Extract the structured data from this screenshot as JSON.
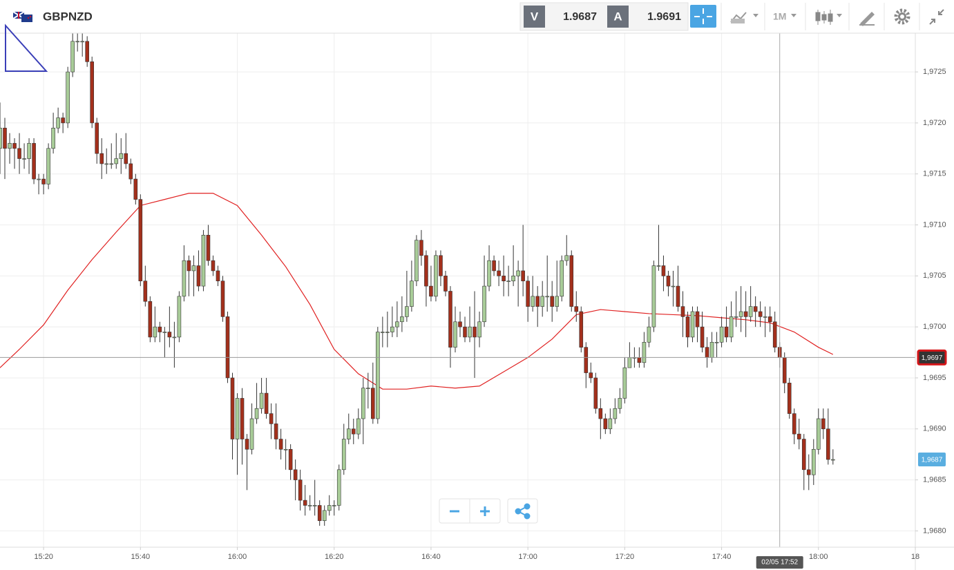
{
  "toolbar": {
    "symbol": "GBPNZD",
    "bid_label": "V",
    "bid": "1.9687",
    "ask_label": "A",
    "ask": "1.9691",
    "timeframe": "1M"
  },
  "chart_data": {
    "type": "candlestick",
    "x": [
      "15:11",
      "15:12",
      "15:13",
      "15:14",
      "15:15",
      "15:16",
      "15:17",
      "15:18",
      "15:19",
      "15:20",
      "15:21",
      "15:22",
      "15:23",
      "15:24",
      "15:25",
      "15:26",
      "15:27",
      "15:28",
      "15:29",
      "15:30",
      "15:31",
      "15:32",
      "15:33",
      "15:34",
      "15:35",
      "15:36",
      "15:37",
      "15:38",
      "15:39",
      "15:40",
      "15:41",
      "15:42",
      "15:43",
      "15:44",
      "15:45",
      "15:46",
      "15:47",
      "15:48",
      "15:49",
      "15:50",
      "15:51",
      "15:52",
      "15:53",
      "15:54",
      "15:55",
      "15:56",
      "15:57",
      "15:58",
      "15:59",
      "16:00",
      "16:01",
      "16:02",
      "16:03",
      "16:04",
      "16:05",
      "16:06",
      "16:07",
      "16:08",
      "16:09",
      "16:10",
      "16:11",
      "16:12",
      "16:13",
      "16:14",
      "16:15",
      "16:16",
      "16:17",
      "16:18",
      "16:19",
      "16:20",
      "16:21",
      "16:22",
      "16:23",
      "16:24",
      "16:25",
      "16:26",
      "16:27",
      "16:28",
      "16:29",
      "16:30",
      "16:31",
      "16:32",
      "16:33",
      "16:34",
      "16:35",
      "16:36",
      "16:37",
      "16:38",
      "16:39",
      "16:40",
      "16:41",
      "16:42",
      "16:43",
      "16:44",
      "16:45",
      "16:46",
      "16:47",
      "16:48",
      "16:49",
      "16:50",
      "16:51",
      "16:52",
      "16:53",
      "16:54",
      "16:55",
      "16:56",
      "16:57",
      "16:58",
      "16:59",
      "17:00",
      "17:01",
      "17:02",
      "17:03",
      "17:04",
      "17:05",
      "17:06",
      "17:07",
      "17:08",
      "17:09",
      "17:10",
      "17:11",
      "17:12",
      "17:13",
      "17:14",
      "17:15",
      "17:16",
      "17:17",
      "17:18",
      "17:19",
      "17:20",
      "17:21",
      "17:22",
      "17:23",
      "17:24",
      "17:25",
      "17:26",
      "17:27",
      "17:28",
      "17:29",
      "17:30",
      "17:31",
      "17:32",
      "17:33",
      "17:34",
      "17:35",
      "17:36",
      "17:37",
      "17:38",
      "17:39",
      "17:40",
      "17:41",
      "17:42",
      "17:43",
      "17:44",
      "17:45",
      "17:46",
      "17:47",
      "17:48",
      "17:49",
      "17:50",
      "17:51",
      "17:52",
      "17:53",
      "17:54",
      "17:55",
      "17:56",
      "17:57",
      "17:58",
      "17:59",
      "18:00",
      "18:01",
      "18:02",
      "18:03"
    ],
    "open": [
      1.97175,
      1.97195,
      1.97175,
      1.9718,
      1.97175,
      1.97165,
      1.97165,
      1.9718,
      1.97145,
      1.97145,
      1.9714,
      1.97175,
      1.97195,
      1.97205,
      1.972,
      1.9725,
      1.9728,
      1.9728,
      1.9728,
      1.9726,
      1.972,
      1.9717,
      1.9716,
      1.9716,
      1.9716,
      1.97165,
      1.9717,
      1.9716,
      1.97145,
      1.97125,
      1.97045,
      1.97025,
      1.9699,
      1.97,
      1.96995,
      1.96995,
      1.9699,
      1.9699,
      1.9703,
      1.97065,
      1.97055,
      1.9706,
      1.9704,
      1.9709,
      1.97065,
      1.97055,
      1.97045,
      1.9701,
      1.9695,
      1.9689,
      1.9693,
      1.9689,
      1.9688,
      1.9691,
      1.9692,
      1.96935,
      1.96915,
      1.96905,
      1.9689,
      1.9688,
      1.9688,
      1.9686,
      1.9685,
      1.9683,
      1.96825,
      1.96825,
      1.96825,
      1.9681,
      1.9682,
      1.96825,
      1.96825,
      1.9686,
      1.9689,
      1.969,
      1.96895,
      1.9691,
      1.9694,
      1.9694,
      1.9691,
      1.96995,
      1.96995,
      1.96995,
      1.97,
      1.97005,
      1.9701,
      1.9702,
      1.97045,
      1.97085,
      1.9707,
      1.9704,
      1.9703,
      1.9707,
      1.9705,
      1.97035,
      1.9698,
      1.97005,
      1.97,
      1.9699,
      1.97,
      1.9699,
      1.97005,
      1.9704,
      1.97065,
      1.97055,
      1.9705,
      1.97045,
      1.97045,
      1.9705,
      1.97055,
      1.97045,
      1.9702,
      1.9703,
      1.9702,
      1.9703,
      1.9703,
      1.9702,
      1.9703,
      1.97065,
      1.9707,
      1.9702,
      1.97015,
      1.9698,
      1.96955,
      1.9695,
      1.9692,
      1.9691,
      1.969,
      1.9691,
      1.9692,
      1.9693,
      1.9696,
      1.9697,
      1.9697,
      1.96965,
      1.96985,
      1.97,
      1.9706,
      1.9706,
      1.9705,
      1.9704,
      1.9704,
      1.9702,
      1.9701,
      1.9699,
      1.97015,
      1.97,
      1.9698,
      1.9697,
      1.96985,
      1.96985,
      1.97,
      1.9699,
      1.9701,
      1.9701,
      1.97015,
      1.9701,
      1.9702,
      1.97015,
      1.9701,
      1.9701,
      1.97005,
      1.9698,
      1.9697,
      1.96945,
      1.96915,
      1.96895,
      1.9689,
      1.9686,
      1.96855,
      1.9688,
      1.9691,
      1.969,
      1.9687
    ],
    "high": [
      1.9722,
      1.97205,
      1.9719,
      1.97185,
      1.9719,
      1.9718,
      1.97185,
      1.97185,
      1.9715,
      1.9715,
      1.9718,
      1.9721,
      1.97215,
      1.9721,
      1.97255,
      1.9729,
      1.9729,
      1.9729,
      1.97285,
      1.97265,
      1.97205,
      1.97185,
      1.97175,
      1.9718,
      1.9719,
      1.97185,
      1.9719,
      1.97165,
      1.9715,
      1.9713,
      1.9706,
      1.9703,
      1.9702,
      1.97005,
      1.97,
      1.9702,
      1.97005,
      1.97035,
      1.9708,
      1.9707,
      1.9707,
      1.97075,
      1.97095,
      1.971,
      1.9707,
      1.9706,
      1.9705,
      1.97015,
      1.96955,
      1.96935,
      1.9694,
      1.96895,
      1.96925,
      1.96945,
      1.9695,
      1.9695,
      1.96925,
      1.96925,
      1.969,
      1.9689,
      1.96885,
      1.9687,
      1.9686,
      1.96845,
      1.96835,
      1.9685,
      1.9683,
      1.96825,
      1.96835,
      1.9683,
      1.96865,
      1.96905,
      1.96915,
      1.9691,
      1.9692,
      1.9695,
      1.96955,
      1.96965,
      1.97,
      1.9701,
      1.97015,
      1.9702,
      1.97025,
      1.9703,
      1.97055,
      1.97065,
      1.9709,
      1.97095,
      1.97075,
      1.9706,
      1.97075,
      1.97075,
      1.97055,
      1.9704,
      1.9702,
      1.97015,
      1.9701,
      1.9702,
      1.97035,
      1.97015,
      1.9707,
      1.9708,
      1.9707,
      1.97065,
      1.9707,
      1.9706,
      1.9708,
      1.97065,
      1.971,
      1.9705,
      1.9705,
      1.9704,
      1.97045,
      1.9707,
      1.97045,
      1.97065,
      1.9707,
      1.9709,
      1.97075,
      1.97035,
      1.9702,
      1.96985,
      1.96965,
      1.96955,
      1.9693,
      1.96915,
      1.9692,
      1.9693,
      1.9694,
      1.9697,
      1.96985,
      1.9698,
      1.9698,
      1.96995,
      1.9701,
      1.97065,
      1.971,
      1.9707,
      1.97055,
      1.97055,
      1.9706,
      1.97035,
      1.97015,
      1.9702,
      1.9702,
      1.97015,
      1.9699,
      1.96995,
      1.96995,
      1.9701,
      1.9702,
      1.97025,
      1.97035,
      1.9704,
      1.97035,
      1.9704,
      1.9703,
      1.97025,
      1.9702,
      1.9702,
      1.97015,
      1.96985,
      1.96975,
      1.9695,
      1.9692,
      1.9691,
      1.96895,
      1.96875,
      1.9689,
      1.9692,
      1.9692,
      1.9692,
      1.9688
    ],
    "low": [
      1.9715,
      1.97145,
      1.9716,
      1.97155,
      1.9715,
      1.97155,
      1.9715,
      1.9714,
      1.9713,
      1.9713,
      1.97135,
      1.9717,
      1.9719,
      1.9719,
      1.97195,
      1.97245,
      1.9727,
      1.97265,
      1.97255,
      1.97195,
      1.9716,
      1.97145,
      1.9715,
      1.97155,
      1.97155,
      1.9715,
      1.97155,
      1.9714,
      1.9712,
      1.9704,
      1.9702,
      1.96985,
      1.96985,
      1.96985,
      1.9697,
      1.9698,
      1.9696,
      1.96985,
      1.97025,
      1.9703,
      1.9703,
      1.97035,
      1.97035,
      1.9706,
      1.9705,
      1.9704,
      1.97005,
      1.96945,
      1.9687,
      1.96855,
      1.96865,
      1.9684,
      1.96875,
      1.96905,
      1.96915,
      1.9691,
      1.9689,
      1.9688,
      1.9687,
      1.9686,
      1.9685,
      1.9683,
      1.9682,
      1.96815,
      1.9682,
      1.96815,
      1.96805,
      1.96805,
      1.96815,
      1.96815,
      1.9682,
      1.96855,
      1.96885,
      1.96885,
      1.9689,
      1.96885,
      1.9692,
      1.96905,
      1.96905,
      1.9698,
      1.9698,
      1.9699,
      1.9699,
      1.96995,
      1.97005,
      1.97015,
      1.9704,
      1.9706,
      1.9702,
      1.97025,
      1.97025,
      1.9704,
      1.9703,
      1.9696,
      1.96975,
      1.9699,
      1.96985,
      1.96985,
      1.9695,
      1.9698,
      1.97,
      1.97035,
      1.9705,
      1.9704,
      1.9703,
      1.9703,
      1.9704,
      1.9702,
      1.9703,
      1.97005,
      1.97015,
      1.97,
      1.9701,
      1.97015,
      1.97005,
      1.97015,
      1.97025,
      1.9706,
      1.97015,
      1.97005,
      1.96975,
      1.9694,
      1.96945,
      1.96915,
      1.9689,
      1.96895,
      1.96895,
      1.96905,
      1.96915,
      1.96925,
      1.9696,
      1.9696,
      1.9696,
      1.9696,
      1.9698,
      1.96995,
      1.97055,
      1.97035,
      1.9703,
      1.9702,
      1.97015,
      1.9699,
      1.9698,
      1.96985,
      1.96985,
      1.96975,
      1.9696,
      1.96965,
      1.9697,
      1.9698,
      1.96985,
      1.96985,
      1.97,
      1.96995,
      1.9699,
      1.97005,
      1.97,
      1.97,
      1.9699,
      1.96995,
      1.96975,
      1.9696,
      1.96935,
      1.9691,
      1.96885,
      1.9688,
      1.9684,
      1.9684,
      1.96845,
      1.96875,
      1.9689,
      1.96865,
      1.96865
    ],
    "close": [
      1.97195,
      1.97175,
      1.9718,
      1.97175,
      1.97165,
      1.97165,
      1.9718,
      1.97145,
      1.97145,
      1.9714,
      1.97175,
      1.97195,
      1.97205,
      1.972,
      1.9725,
      1.9728,
      1.9728,
      1.9728,
      1.9726,
      1.972,
      1.9717,
      1.9716,
      1.9716,
      1.9716,
      1.97165,
      1.9717,
      1.9716,
      1.97145,
      1.97125,
      1.97045,
      1.97025,
      1.9699,
      1.97,
      1.96995,
      1.96995,
      1.9699,
      1.9699,
      1.9703,
      1.97065,
      1.97055,
      1.9706,
      1.9704,
      1.9709,
      1.97065,
      1.97055,
      1.97045,
      1.9701,
      1.9695,
      1.9689,
      1.9693,
      1.9689,
      1.9688,
      1.9691,
      1.9692,
      1.96935,
      1.96915,
      1.96905,
      1.9689,
      1.9688,
      1.9688,
      1.9686,
      1.9685,
      1.9683,
      1.96825,
      1.96825,
      1.96825,
      1.9681,
      1.9682,
      1.96825,
      1.96825,
      1.9686,
      1.9689,
      1.969,
      1.96895,
      1.9691,
      1.9694,
      1.9694,
      1.9691,
      1.96995,
      1.96995,
      1.96995,
      1.97,
      1.97005,
      1.9701,
      1.9702,
      1.97045,
      1.97085,
      1.9707,
      1.9704,
      1.9703,
      1.9707,
      1.9705,
      1.97035,
      1.9698,
      1.97005,
      1.97,
      1.9699,
      1.97,
      1.9699,
      1.97005,
      1.9704,
      1.97065,
      1.97055,
      1.9705,
      1.97045,
      1.97045,
      1.9705,
      1.97055,
      1.97045,
      1.9702,
      1.9703,
      1.9702,
      1.9703,
      1.9703,
      1.9702,
      1.9703,
      1.97065,
      1.9707,
      1.9702,
      1.97015,
      1.9698,
      1.96955,
      1.9695,
      1.9692,
      1.9691,
      1.969,
      1.9691,
      1.9692,
      1.9693,
      1.9696,
      1.9697,
      1.9697,
      1.96965,
      1.96985,
      1.97,
      1.9706,
      1.9706,
      1.9705,
      1.9704,
      1.9704,
      1.9702,
      1.9701,
      1.9699,
      1.97015,
      1.97,
      1.9698,
      1.9697,
      1.96985,
      1.96985,
      1.97,
      1.9699,
      1.9701,
      1.9701,
      1.97015,
      1.9701,
      1.9702,
      1.97015,
      1.9701,
      1.9701,
      1.97005,
      1.9698,
      1.9697,
      1.96945,
      1.96915,
      1.96895,
      1.9689,
      1.9686,
      1.96855,
      1.9688,
      1.9691,
      1.969,
      1.9687,
      1.9687
    ],
    "up_color": "#a8cc98",
    "down_color": "#a3301c",
    "outline_color": "#333333",
    "xlim": [
      "15:11",
      "18:20"
    ],
    "xticks": [
      "15:20",
      "15:40",
      "16:00",
      "16:20",
      "16:40",
      "17:00",
      "17:20",
      "17:40",
      "18:00",
      {
        "value": "18:20",
        "label": "18"
      }
    ],
    "ylim": [
      1.96784,
      1.97288
    ],
    "yticks": [
      {
        "value": 1.968,
        "label": "1,9680"
      },
      {
        "value": 1.9685,
        "label": "1,9685"
      },
      {
        "value": 1.969,
        "label": "1,9690"
      },
      {
        "value": 1.9695,
        "label": "1,9695"
      },
      {
        "value": 1.97,
        "label": "1,9700"
      },
      {
        "value": 1.9705,
        "label": "1,9705"
      },
      {
        "value": 1.971,
        "label": "1,9710"
      },
      {
        "value": 1.9715,
        "label": "1,9715"
      },
      {
        "value": 1.972,
        "label": "1,9720"
      },
      {
        "value": 1.9725,
        "label": "1,9725"
      }
    ],
    "grid": true,
    "moving_average": {
      "color": "#e02020",
      "x": [
        "15:11",
        "15:15",
        "15:20",
        "15:25",
        "15:30",
        "15:35",
        "15:40",
        "15:45",
        "15:50",
        "15:55",
        "16:00",
        "16:05",
        "16:10",
        "16:15",
        "16:20",
        "16:25",
        "16:30",
        "16:35",
        "16:40",
        "16:45",
        "16:50",
        "16:55",
        "17:00",
        "17:05",
        "17:10",
        "17:15",
        "17:20",
        "17:25",
        "17:30",
        "17:35",
        "17:40",
        "17:45",
        "17:50",
        "17:55",
        "18:00",
        "18:03"
      ],
      "values": [
        1.9696,
        1.96978,
        1.97002,
        1.97036,
        1.97066,
        1.97093,
        1.97119,
        1.97125,
        1.97131,
        1.97131,
        1.97119,
        1.9709,
        1.97059,
        1.97022,
        1.96978,
        1.96954,
        1.96939,
        1.96939,
        1.96942,
        1.9694,
        1.96942,
        1.96956,
        1.9697,
        1.96988,
        1.97012,
        1.97017,
        1.97015,
        1.97013,
        1.97012,
        1.97011,
        1.97009,
        1.97007,
        1.97004,
        1.96995,
        1.9698,
        1.96973
      ]
    },
    "price_line": {
      "value": 1.9697,
      "label": "1,9697",
      "color": "#d4161a"
    },
    "last_price": {
      "value": 1.9687,
      "label": "1,9687",
      "color": "#5aaee0"
    },
    "crosshair": {
      "x": "17:52",
      "label": "02/05 17:52"
    }
  }
}
